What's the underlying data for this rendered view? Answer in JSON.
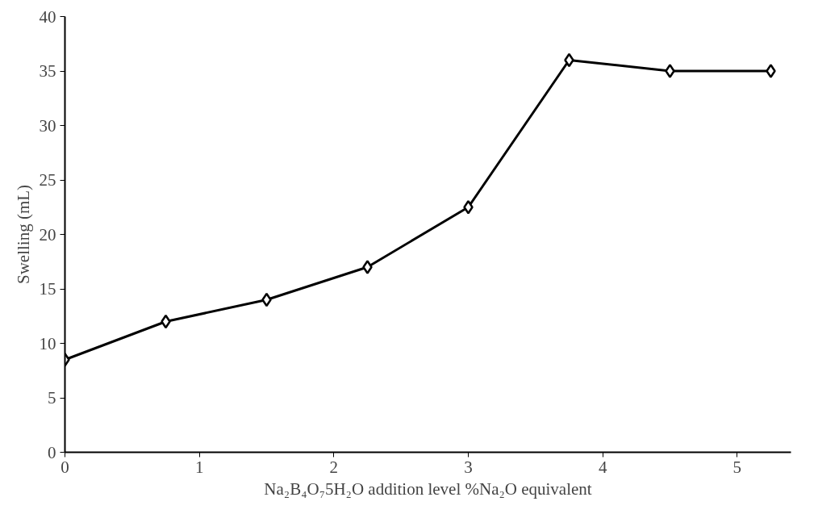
{
  "chart_data": {
    "type": "line",
    "xlabel": "Na₂B₄O₇5H₂O addition level %Na₂O equivalent",
    "ylabel": "Swelling (mL)",
    "x": [
      0,
      0.75,
      1.5,
      2.25,
      3.0,
      3.75,
      4.5,
      5.25
    ],
    "series": [
      {
        "color": "#000000",
        "values": [
          8.5,
          12,
          14,
          17,
          22.5,
          36,
          35,
          35
        ]
      }
    ],
    "xlim": [
      0,
      5.4
    ],
    "ylim": [
      0,
      40
    ],
    "xticks": [
      0,
      1,
      2,
      3,
      4,
      5
    ],
    "yticks": [
      0,
      5,
      10,
      15,
      20,
      25,
      30,
      35,
      40
    ],
    "grid": false,
    "marker": "diamond",
    "line_style": "solid"
  }
}
